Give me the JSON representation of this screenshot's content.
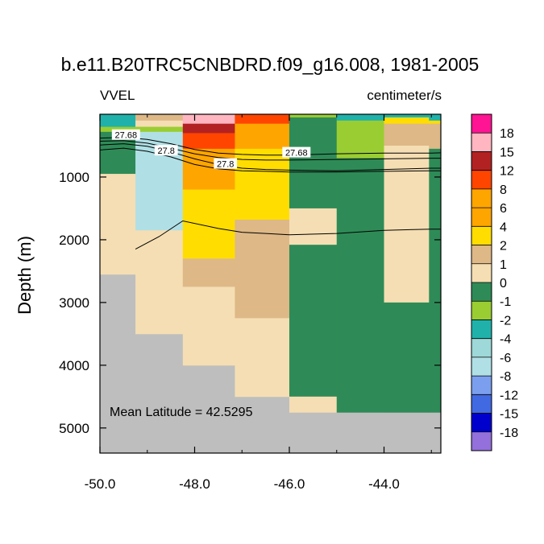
{
  "chart_data": {
    "type": "heatmap",
    "title": "b.e11.B20TRC5CNBDRD.f09_g16.008, 1981-2005",
    "variable_label": "VVEL",
    "units_label": "centimeter/s",
    "ylabel": "Depth (m)",
    "xlabel": "",
    "xlim": [
      -50.0,
      -42.8
    ],
    "ylim": [
      5400,
      0
    ],
    "x_ticks": [
      -50.0,
      -48.0,
      -46.0,
      -44.0
    ],
    "x_tick_labels": [
      "-50.0",
      "-48.0",
      "-46.0",
      "-44.0"
    ],
    "y_ticks": [
      1000,
      2000,
      3000,
      4000,
      5000
    ],
    "y_tick_labels": [
      "1000",
      "2000",
      "3000",
      "4000",
      "5000"
    ],
    "annotation": "Mean Latitude = 42.5295",
    "legend": {
      "position": "right",
      "boundaries": [
        "18",
        "15",
        "12",
        "8",
        "6",
        "4",
        "2",
        "1",
        "0",
        "-1",
        "-2",
        "-4",
        "-6",
        "-8",
        "-12",
        "-15",
        "-18"
      ],
      "colors": [
        "#ff1493",
        "#ffb6c1",
        "#b22222",
        "#ff4500",
        "#ffa500",
        "#ffa500",
        "#ffdd00",
        "#deb887",
        "#f5deb3",
        "#2e8b57",
        "#9acd32",
        "#20b2aa",
        "#9ed8d8",
        "#b0e0e6",
        "#7b9fee",
        "#4169e1",
        "#0000cd",
        "#9370db"
      ]
    },
    "column_edges": [
      -50.0,
      -49.25,
      -48.25,
      -47.15,
      -46.0,
      -45.0,
      -44.0,
      -43.05,
      -42.8
    ],
    "cells": [
      {
        "x": [
          -50.0,
          -49.25
        ],
        "depth": [
          0,
          200
        ],
        "value": -3
      },
      {
        "x": [
          -50.0,
          -49.25
        ],
        "depth": [
          200,
          280
        ],
        "value": -1.5
      },
      {
        "x": [
          -50.0,
          -49.25
        ],
        "depth": [
          280,
          500
        ],
        "value": -0.5
      },
      {
        "x": [
          -50.0,
          -49.25
        ],
        "depth": [
          500,
          950
        ],
        "value": -0.5
      },
      {
        "x": [
          -50.0,
          -49.25
        ],
        "depth": [
          950,
          2550
        ],
        "value": 0.5
      },
      {
        "x": [
          -49.25,
          -48.25
        ],
        "depth": [
          0,
          100
        ],
        "value": 1.5
      },
      {
        "x": [
          -49.25,
          -48.25
        ],
        "depth": [
          100,
          200
        ],
        "value": 0.5
      },
      {
        "x": [
          -49.25,
          -48.25
        ],
        "depth": [
          200,
          280
        ],
        "value": -1.5
      },
      {
        "x": [
          -49.25,
          -48.25
        ],
        "depth": [
          280,
          1850
        ],
        "value": -7
      },
      {
        "x": [
          -49.25,
          -48.25
        ],
        "depth": [
          1850,
          3500
        ],
        "value": 0.5
      },
      {
        "x": [
          -48.25,
          -47.15
        ],
        "depth": [
          0,
          150
        ],
        "value": 16
      },
      {
        "x": [
          -48.25,
          -47.15
        ],
        "depth": [
          150,
          300
        ],
        "value": 13
      },
      {
        "x": [
          -48.25,
          -47.15
        ],
        "depth": [
          300,
          550
        ],
        "value": 10
      },
      {
        "x": [
          -48.25,
          -47.15
        ],
        "depth": [
          550,
          1200
        ],
        "value": 5
      },
      {
        "x": [
          -48.25,
          -47.15
        ],
        "depth": [
          1200,
          2300
        ],
        "value": 3
      },
      {
        "x": [
          -48.25,
          -47.15
        ],
        "depth": [
          2300,
          2750
        ],
        "value": 1.5
      },
      {
        "x": [
          -48.25,
          -47.15
        ],
        "depth": [
          2750,
          4000
        ],
        "value": 0.5
      },
      {
        "x": [
          -47.15,
          -46.0
        ],
        "depth": [
          0,
          150
        ],
        "value": 10
      },
      {
        "x": [
          -47.15,
          -46.0
        ],
        "depth": [
          150,
          550
        ],
        "value": 5
      },
      {
        "x": [
          -47.15,
          -46.0
        ],
        "depth": [
          550,
          1680
        ],
        "value": 3
      },
      {
        "x": [
          -47.15,
          -46.0
        ],
        "depth": [
          1680,
          3250
        ],
        "value": 1.5
      },
      {
        "x": [
          -47.15,
          -46.0
        ],
        "depth": [
          3250,
          4500
        ],
        "value": 0.5
      },
      {
        "x": [
          -46.0,
          -45.0
        ],
        "depth": [
          0,
          50
        ],
        "value": -1.5
      },
      {
        "x": [
          -46.0,
          -45.0
        ],
        "depth": [
          50,
          1500
        ],
        "value": -0.5
      },
      {
        "x": [
          -46.0,
          -45.0
        ],
        "depth": [
          1500,
          2080
        ],
        "value": 0.5
      },
      {
        "x": [
          -46.0,
          -45.0
        ],
        "depth": [
          2080,
          4500
        ],
        "value": -0.5
      },
      {
        "x": [
          -46.0,
          -45.0
        ],
        "depth": [
          4500,
          4750
        ],
        "value": 0.5
      },
      {
        "x": [
          -45.0,
          -44.0
        ],
        "depth": [
          0,
          100
        ],
        "value": -3
      },
      {
        "x": [
          -45.0,
          -44.0
        ],
        "depth": [
          100,
          700
        ],
        "value": -1.5
      },
      {
        "x": [
          -45.0,
          -44.0
        ],
        "depth": [
          700,
          4750
        ],
        "value": -0.5
      },
      {
        "x": [
          -44.0,
          -43.05
        ],
        "depth": [
          0,
          50
        ],
        "value": -3
      },
      {
        "x": [
          -44.0,
          -43.05
        ],
        "depth": [
          50,
          150
        ],
        "value": 3
      },
      {
        "x": [
          -44.0,
          -43.05
        ],
        "depth": [
          150,
          500
        ],
        "value": 1.5
      },
      {
        "x": [
          -44.0,
          -43.05
        ],
        "depth": [
          500,
          3000
        ],
        "value": 0.5
      },
      {
        "x": [
          -44.0,
          -43.05
        ],
        "depth": [
          3000,
          4750
        ],
        "value": -0.5
      },
      {
        "x": [
          -43.05,
          -42.8
        ],
        "depth": [
          0,
          100
        ],
        "value": -3
      },
      {
        "x": [
          -43.05,
          -42.8
        ],
        "depth": [
          100,
          150
        ],
        "value": 3
      },
      {
        "x": [
          -43.05,
          -42.8
        ],
        "depth": [
          150,
          550
        ],
        "value": 1.5
      },
      {
        "x": [
          -43.05,
          -42.8
        ],
        "depth": [
          550,
          4750
        ],
        "value": -0.5
      }
    ],
    "land_color": "#bebebe",
    "contours": [
      {
        "label": "27.68",
        "points": [
          [
            -50.0,
            380
          ],
          [
            -49.5,
            370
          ],
          [
            -49.0,
            400
          ],
          [
            -48.5,
            470
          ],
          [
            -48.0,
            560
          ],
          [
            -47.5,
            620
          ],
          [
            -47.0,
            640
          ],
          [
            -46.5,
            650
          ],
          [
            -46.0,
            650
          ],
          [
            -45.0,
            630
          ],
          [
            -44.0,
            620
          ],
          [
            -43.0,
            620
          ],
          [
            -42.8,
            615
          ]
        ]
      },
      {
        "label": "",
        "points": [
          [
            -50.0,
            430
          ],
          [
            -49.5,
            420
          ],
          [
            -49.0,
            460
          ],
          [
            -48.5,
            540
          ],
          [
            -48.0,
            630
          ],
          [
            -47.5,
            690
          ],
          [
            -47.0,
            720
          ],
          [
            -46.5,
            730
          ],
          [
            -46.0,
            730
          ],
          [
            -45.0,
            720
          ],
          [
            -44.0,
            710
          ],
          [
            -43.0,
            700
          ],
          [
            -42.8,
            700
          ]
        ]
      },
      {
        "label": "27.8",
        "points": [
          [
            -50.0,
            490
          ],
          [
            -49.5,
            470
          ],
          [
            -49.0,
            510
          ],
          [
            -48.5,
            600
          ],
          [
            -48.0,
            710
          ],
          [
            -47.5,
            800
          ],
          [
            -47.0,
            860
          ],
          [
            -46.5,
            880
          ],
          [
            -46.0,
            890
          ],
          [
            -45.0,
            900
          ],
          [
            -44.0,
            880
          ],
          [
            -43.0,
            860
          ],
          [
            -42.8,
            860
          ]
        ]
      },
      {
        "label": "",
        "points": [
          [
            -50.0,
            570
          ],
          [
            -49.5,
            540
          ],
          [
            -49.0,
            590
          ],
          [
            -48.5,
            680
          ],
          [
            -48.0,
            800
          ],
          [
            -47.5,
            870
          ],
          [
            -47.0,
            900
          ],
          [
            -46.5,
            910
          ],
          [
            -46.0,
            920
          ],
          [
            -45.0,
            920
          ],
          [
            -44.0,
            910
          ],
          [
            -43.0,
            900
          ],
          [
            -42.8,
            900
          ]
        ]
      },
      {
        "label": "",
        "points": [
          [
            -49.25,
            2150
          ],
          [
            -48.75,
            1950
          ],
          [
            -48.25,
            1700
          ],
          [
            -47.5,
            1820
          ],
          [
            -47.0,
            1880
          ],
          [
            -46.5,
            1900
          ],
          [
            -46.0,
            1920
          ],
          [
            -45.0,
            1900
          ],
          [
            -44.0,
            1850
          ],
          [
            -43.0,
            1830
          ],
          [
            -42.8,
            1830
          ]
        ]
      }
    ],
    "contour_labels": [
      {
        "text": "27.68",
        "x": -49.45,
        "depth": 330
      },
      {
        "text": "27.8",
        "x": -48.6,
        "depth": 580
      },
      {
        "text": "27.8",
        "x": -47.35,
        "depth": 790
      },
      {
        "text": "27.68",
        "x": -45.85,
        "depth": 610
      }
    ]
  }
}
